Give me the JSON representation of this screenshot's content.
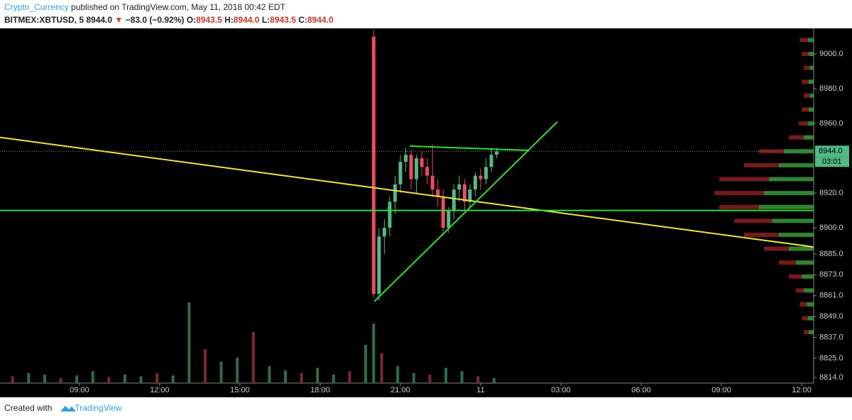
{
  "header": {
    "author": "Crypto_Currency",
    "published": " published on TradingView.com, May 11, 2018 00:42 EDT",
    "symbol": "BITMEX:XBTUSD, 5",
    "last": "8944.0",
    "arrow": "▼",
    "change": "−83.0 (−0.92%)",
    "o_label": "O:",
    "o": "8943.5",
    "h_label": "H:",
    "h": "8944.0",
    "l_label": "L:",
    "l": "8943.5",
    "c_label": "C:",
    "c": "8944.0"
  },
  "footer": {
    "created": "Created with",
    "brand": "TradingView"
  },
  "chart_data": {
    "type": "candlestick",
    "xlim": [
      6.03,
      36.45
    ],
    "ylim": [
      8810.7,
      9014.7
    ],
    "xticks": [
      {
        "value": 9,
        "label": "09:00"
      },
      {
        "value": 12,
        "label": "12:00"
      },
      {
        "value": 15,
        "label": "15:00"
      },
      {
        "value": 18,
        "label": "18:00"
      },
      {
        "value": 21,
        "label": "21:00"
      },
      {
        "value": 24,
        "label": "11"
      },
      {
        "value": 27,
        "label": "03:00"
      },
      {
        "value": 30,
        "label": "06:00"
      },
      {
        "value": 33,
        "label": "09:00"
      },
      {
        "value": 36,
        "label": "12:00"
      }
    ],
    "yticks": [
      {
        "value": 9000,
        "label": "9000.0"
      },
      {
        "value": 8980,
        "label": "8980.0"
      },
      {
        "value": 8960,
        "label": "8960.0"
      },
      {
        "value": 8920,
        "label": "8920.0"
      },
      {
        "value": 8900,
        "label": "8900.0"
      },
      {
        "value": 8885,
        "label": "8885.0"
      },
      {
        "value": 8873,
        "label": "8873.0"
      },
      {
        "value": 8861,
        "label": "8861.0"
      },
      {
        "value": 8849,
        "label": "8849.0"
      },
      {
        "value": 8837,
        "label": "8837.0"
      },
      {
        "value": 8825,
        "label": "8825.0"
      },
      {
        "value": 8814,
        "label": "8814.0"
      }
    ],
    "last_price": {
      "value": 8944,
      "label": "8944.0",
      "countdown": "03:01"
    },
    "up_color": "#53b987",
    "down_color": "#eb4d5c",
    "candles": {
      "x": [
        20.0,
        20.2,
        20.4,
        20.6,
        20.8,
        21.0,
        21.2,
        21.4,
        21.6,
        21.8,
        22.0,
        22.2,
        22.4,
        22.6,
        22.8,
        23.0,
        23.2,
        23.4,
        23.6,
        23.8,
        24.0,
        24.2,
        24.4,
        24.6
      ],
      "open": [
        9010,
        8862,
        8895,
        8900,
        8915,
        8925,
        8938,
        8942,
        8928,
        8940,
        8935,
        8930,
        8922,
        8918,
        8900,
        8910,
        8922,
        8925,
        8915,
        8922,
        8930,
        8928,
        8935,
        8942
      ],
      "high": [
        9014,
        8900,
        8905,
        8918,
        8930,
        8942,
        8946,
        8945,
        8942,
        8944,
        8940,
        8948,
        8928,
        8922,
        8912,
        8925,
        8930,
        8928,
        8925,
        8932,
        8934,
        8940,
        8946,
        8946
      ],
      "low": [
        8860,
        8858,
        8885,
        8895,
        8908,
        8920,
        8932,
        8922,
        8920,
        8930,
        8925,
        8918,
        8912,
        8898,
        8897,
        8905,
        8915,
        8910,
        8912,
        8918,
        8922,
        8925,
        8932,
        8940
      ],
      "close": [
        8862,
        8895,
        8900,
        8915,
        8925,
        8938,
        8942,
        8928,
        8940,
        8935,
        8930,
        8922,
        8918,
        8900,
        8910,
        8922,
        8925,
        8915,
        8922,
        8930,
        8928,
        8935,
        8942,
        8944
      ]
    },
    "volume": {
      "ylim": [
        0,
        100
      ],
      "x": [
        6.5,
        7.1,
        7.7,
        8.3,
        8.9,
        9.5,
        10.1,
        10.7,
        11.3,
        11.9,
        12.5,
        13.1,
        13.7,
        14.3,
        14.9,
        15.5,
        16.1,
        16.7,
        17.3,
        17.9,
        18.5,
        19.1,
        19.7,
        20.0,
        20.3,
        20.9,
        21.5,
        22.1,
        22.7,
        23.3,
        23.9,
        24.5
      ],
      "values": [
        8,
        12,
        10,
        6,
        9,
        14,
        7,
        10,
        8,
        12,
        9,
        95,
        40,
        25,
        30,
        60,
        20,
        15,
        12,
        18,
        10,
        14,
        45,
        70,
        35,
        20,
        12,
        10,
        18,
        14,
        8,
        6
      ]
    },
    "volume_profile": {
      "prices": [
        8840,
        8848,
        8856,
        8864,
        8872,
        8880,
        8888,
        8896,
        8904,
        8912,
        8920,
        8928,
        8936,
        8944,
        8952,
        8960,
        8968,
        8976,
        8984,
        8992,
        9000,
        9008
      ],
      "up": [
        5,
        6,
        7,
        10,
        12,
        18,
        25,
        35,
        42,
        55,
        50,
        45,
        35,
        30,
        10,
        6,
        5,
        4,
        5,
        4,
        5,
        6
      ],
      "down": [
        5,
        6,
        7,
        8,
        13,
        17,
        25,
        35,
        38,
        40,
        50,
        50,
        35,
        25,
        15,
        9,
        7,
        6,
        7,
        6,
        7,
        8
      ]
    },
    "drawings": [
      {
        "color": "#f0e442",
        "points": [
          [
            6.03,
            8952
          ],
          [
            36.45,
            8889
          ]
        ]
      },
      {
        "color": "#33dd33",
        "points": [
          [
            6.03,
            8910
          ],
          [
            36.45,
            8910
          ]
        ]
      },
      {
        "color": "#33dd33",
        "points": [
          [
            20.02,
            8857.6
          ],
          [
            26.87,
            8961
          ]
        ]
      },
      {
        "color": "#33dd33",
        "points": [
          [
            21.35,
            8947
          ],
          [
            25.81,
            8944.5
          ]
        ]
      }
    ]
  }
}
